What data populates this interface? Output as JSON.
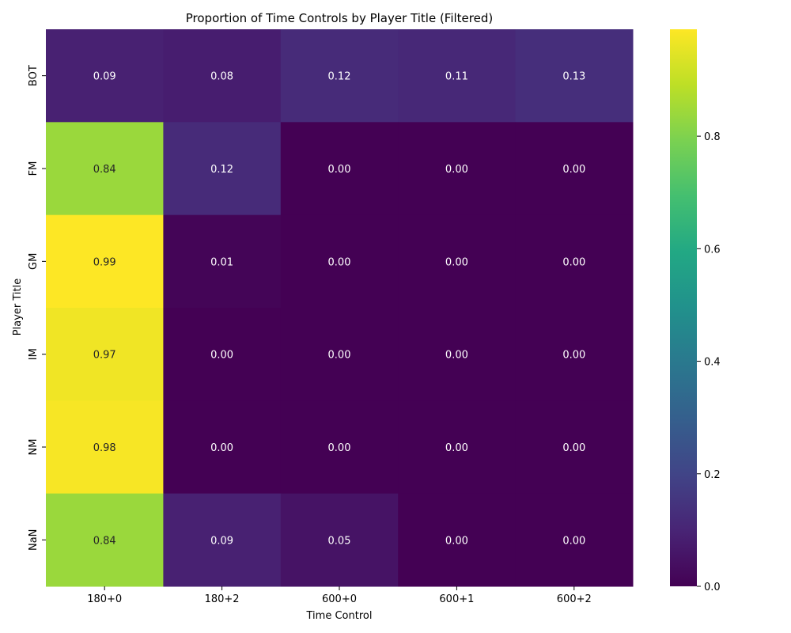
{
  "chart_data": {
    "type": "heatmap",
    "title": "Proportion of Time Controls by Player Title (Filtered)",
    "xlabel": "Time Control",
    "ylabel": "Player Title",
    "x_categories": [
      "180+0",
      "180+2",
      "600+0",
      "600+1",
      "600+2"
    ],
    "y_categories": [
      "BOT",
      "FM",
      "GM",
      "IM",
      "NM",
      "NaN"
    ],
    "values": [
      [
        0.09,
        0.08,
        0.12,
        0.11,
        0.13
      ],
      [
        0.84,
        0.12,
        0.0,
        0.0,
        0.0
      ],
      [
        0.99,
        0.01,
        0.0,
        0.0,
        0.0
      ],
      [
        0.97,
        0.0,
        0.0,
        0.0,
        0.0
      ],
      [
        0.98,
        0.0,
        0.0,
        0.0,
        0.0
      ],
      [
        0.84,
        0.09,
        0.05,
        0.0,
        0.0
      ]
    ],
    "colormap": "viridis",
    "vmin": 0,
    "vmax": 0.99,
    "colorbar_ticks": [
      "0.0",
      "0.2",
      "0.4",
      "0.6",
      "0.8"
    ],
    "colorbar_tick_values": [
      0.0,
      0.2,
      0.4,
      0.6,
      0.8
    ]
  }
}
